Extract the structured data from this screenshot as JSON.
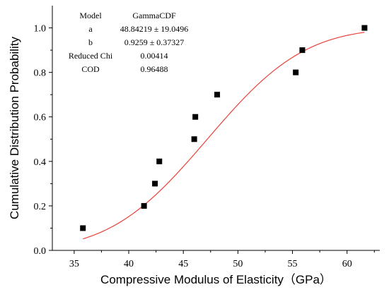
{
  "chart_data": {
    "type": "scatter",
    "title": "",
    "xlabel": "Compressive Modulus of Elasticity（GPa）",
    "ylabel": "Cumulative Distribution Probability",
    "xlim": [
      33,
      63
    ],
    "ylim": [
      0.0,
      1.1
    ],
    "xticks": [
      35,
      40,
      45,
      50,
      55,
      60
    ],
    "yticks": [
      0.0,
      0.2,
      0.4,
      0.6,
      0.8,
      1.0
    ],
    "xtick_labels": [
      "35",
      "40",
      "45",
      "50",
      "55",
      "60"
    ],
    "ytick_labels": [
      "0.0",
      "0.2",
      "0.4",
      "0.6",
      "0.8",
      "1.0"
    ],
    "grid": false,
    "legend": "none",
    "points": {
      "x": [
        35.8,
        41.4,
        42.4,
        42.8,
        46.0,
        46.1,
        48.1,
        55.3,
        55.9,
        61.6
      ],
      "y": [
        0.1,
        0.2,
        0.3,
        0.4,
        0.5,
        0.6,
        0.7,
        0.8,
        0.9,
        1.0
      ]
    },
    "fit": {
      "model": "GammaCDF",
      "x_range": [
        35.8,
        61.6
      ],
      "color": "#e8423a"
    },
    "stats_table": {
      "rows": [
        {
          "label": "Model",
          "value": "GammaCDF"
        },
        {
          "label": "a",
          "value": "48.84219 ± 19.0496"
        },
        {
          "label": "b",
          "value": "0.9259 ± 0.37327"
        },
        {
          "label": "Reduced Chi",
          "value": "0.00414"
        },
        {
          "label": "COD",
          "value": "0.96488"
        }
      ]
    }
  }
}
